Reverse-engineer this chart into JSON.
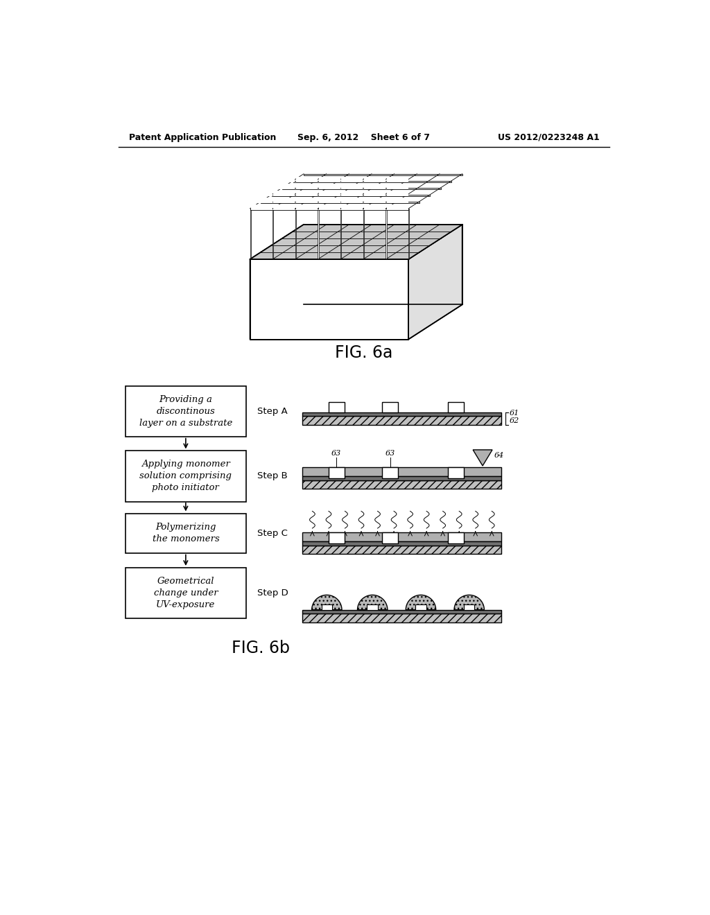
{
  "background_color": "#ffffff",
  "header_left": "Patent Application Publication",
  "header_center": "Sep. 6, 2012    Sheet 6 of 7",
  "header_right": "US 2012/0223248 A1",
  "fig6a_label": "FIG. 6a",
  "fig6b_label": "FIG. 6b",
  "flowchart_boxes": [
    {
      "text": "Providing a\ndiscontinous\nlayer on a substrate",
      "step": "Step A"
    },
    {
      "text": "Applying monomer\nsolution comprising\nphoto initiator",
      "step": "Step B"
    },
    {
      "text": "Polymerizing\nthe monomers",
      "step": "Step C"
    },
    {
      "text": "Geometrical\nchange under\nUV-exposure",
      "step": "Step D"
    }
  ],
  "ref_61": "61",
  "ref_62": "62",
  "ref_63a": "63",
  "ref_63b": "63",
  "ref_64": "64"
}
